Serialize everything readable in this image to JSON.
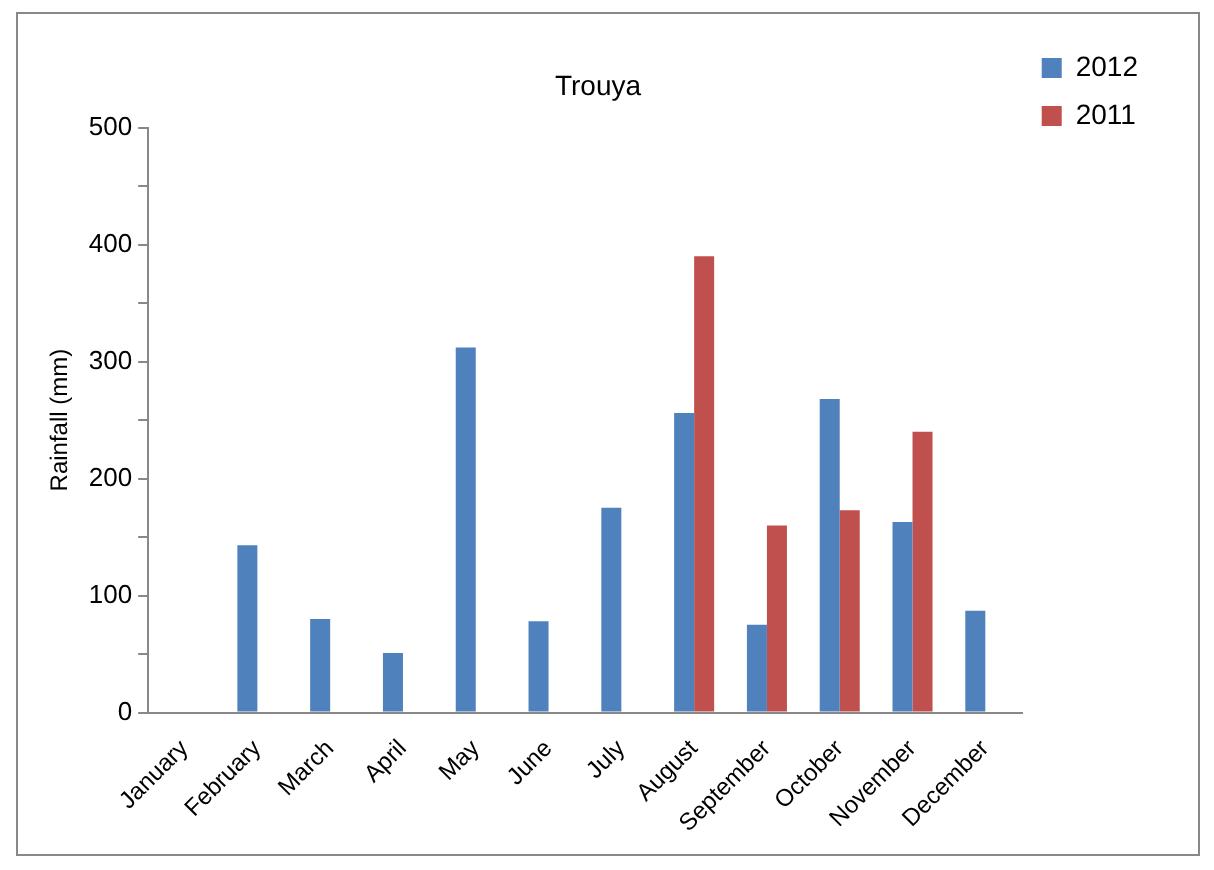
{
  "chart_data": {
    "type": "bar",
    "title": "Trouya",
    "ylabel": "Rainfall (mm)",
    "categories": [
      "January",
      "February",
      "March",
      "April",
      "May",
      "June",
      "July",
      "August",
      "September",
      "October",
      "November",
      "December"
    ],
    "series": [
      {
        "name": "2012",
        "color": "#4f81bd",
        "values": [
          0,
          143,
          80,
          51,
          312,
          78,
          175,
          256,
          75,
          268,
          163,
          87
        ]
      },
      {
        "name": "2011",
        "color": "#c0504d",
        "values": [
          null,
          null,
          null,
          null,
          null,
          null,
          null,
          390,
          160,
          173,
          240,
          null
        ]
      }
    ],
    "ylim": [
      0,
      500
    ],
    "yticks": [
      0,
      {
        "value": 50,
        "label": null
      },
      100,
      {
        "value": 150,
        "label": null
      },
      200,
      {
        "value": 250,
        "label": null
      },
      300,
      {
        "value": 350,
        "label": null
      },
      400,
      {
        "value": 450,
        "label": null
      },
      500
    ],
    "grid": false,
    "legend": "top right"
  }
}
